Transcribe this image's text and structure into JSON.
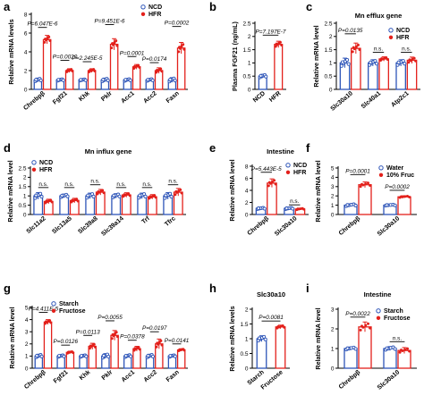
{
  "colors": {
    "control": "#2e55b8",
    "treatment": "#e3201b",
    "axis": "#000000"
  },
  "panels": [
    {
      "letter": "a",
      "title": "",
      "ylabel": "Relative mRNA levels",
      "ylim": [
        0,
        8
      ],
      "yticks": [
        0,
        2,
        4,
        6,
        8
      ],
      "legend": [
        "NCD",
        "HFR"
      ],
      "legend_position": "top-right",
      "categories": [
        "Chrebpβ",
        "Fgf21",
        "Khk",
        "Pklr",
        "Acc1",
        "Acc2",
        "Fasn"
      ],
      "series": [
        {
          "name": "NCD",
          "values": [
            1.0,
            1.0,
            1.0,
            1.0,
            1.0,
            1.0,
            1.0
          ],
          "errors": [
            0.2,
            0.12,
            0.1,
            0.2,
            0.15,
            0.15,
            0.25
          ]
        },
        {
          "name": "HFR",
          "values": [
            5.3,
            2.0,
            2.0,
            4.8,
            2.4,
            2.0,
            4.4
          ],
          "errors": [
            0.45,
            0.2,
            0.2,
            0.6,
            0.25,
            0.3,
            0.6
          ]
        }
      ],
      "pvalues": [
        {
          "cat": 0,
          "text": "P=6.047E-6",
          "y": 6.6
        },
        {
          "cat": 1,
          "text": "P=0.0020",
          "y": 3.1
        },
        {
          "cat": 2,
          "text": "P=2.245E-5",
          "y": 2.95
        },
        {
          "cat": 3,
          "text": "P=9.451E-6",
          "y": 6.9
        },
        {
          "cat": 4,
          "text": "P=0.0001",
          "y": 3.5
        },
        {
          "cat": 5,
          "text": "P=0.0174",
          "y": 2.85
        },
        {
          "cat": 6,
          "text": "P=0.0002",
          "y": 6.7
        }
      ]
    },
    {
      "letter": "b",
      "title": "",
      "ylabel": "Plasma FGF21 (ng/mL)",
      "ylim": [
        0,
        2.5
      ],
      "yticks": [
        0,
        0.5,
        1.0,
        1.5,
        2.0,
        2.5
      ],
      "legend": [],
      "legend_position": "",
      "categories": [
        "NCD",
        "HFR"
      ],
      "series": [
        {
          "name": "NCD",
          "values": [
            0.5,
            null
          ],
          "errors": [
            0.07,
            null
          ]
        },
        {
          "name": "HFR",
          "values": [
            null,
            1.7
          ],
          "errors": [
            null,
            0.12
          ]
        }
      ],
      "pvalues": [
        {
          "cat": [
            0,
            1
          ],
          "text": "P=7.197E-7",
          "y": 2.05
        }
      ]
    },
    {
      "letter": "c",
      "title": "Mn efflux gene",
      "ylabel": "Relative mRNA level",
      "ylim": [
        0,
        2.5
      ],
      "yticks": [
        0,
        0.5,
        1.0,
        1.5,
        2.0,
        2.5
      ],
      "legend": [
        "NCD",
        "HFR"
      ],
      "legend_position": "top-right",
      "categories": [
        "Slc30a10",
        "Slc40a1",
        "Atp2c1"
      ],
      "series": [
        {
          "name": "NCD",
          "values": [
            1.0,
            1.0,
            1.0
          ],
          "errors": [
            0.18,
            0.12,
            0.12
          ]
        },
        {
          "name": "HFR",
          "values": [
            1.55,
            1.15,
            1.1
          ],
          "errors": [
            0.2,
            0.08,
            0.12
          ]
        }
      ],
      "pvalues": [
        {
          "cat": 0,
          "text": "P=0.0135",
          "y": 2.1
        },
        {
          "cat": 1,
          "text": "n.s.",
          "y": 1.4
        },
        {
          "cat": 2,
          "text": "n.s.",
          "y": 1.4
        }
      ]
    },
    {
      "letter": "d",
      "title": "Mn influx gene",
      "ylabel": "Relative mRNA level",
      "ylim": [
        0,
        2.5
      ],
      "yticks": [
        0,
        0.5,
        1.0,
        1.5,
        2.0,
        2.5
      ],
      "legend": [
        "NCD",
        "HFR"
      ],
      "legend_position": "top-left",
      "categories": [
        "Slc11a2",
        "Slc13a5",
        "Slc39a8",
        "Slc39a14",
        "Trf",
        "Tfrc"
      ],
      "series": [
        {
          "name": "NCD",
          "values": [
            1.0,
            1.0,
            1.0,
            1.0,
            1.0,
            1.0
          ],
          "errors": [
            0.18,
            0.1,
            0.15,
            0.12,
            0.15,
            0.18
          ]
        },
        {
          "name": "HFR",
          "values": [
            0.7,
            0.75,
            1.2,
            1.05,
            0.95,
            1.2
          ],
          "errors": [
            0.12,
            0.12,
            0.15,
            0.12,
            0.12,
            0.2
          ]
        }
      ],
      "pvalues": [
        {
          "cat": 0,
          "text": "n.s.",
          "y": 1.45
        },
        {
          "cat": 1,
          "text": "n.s.",
          "y": 1.45
        },
        {
          "cat": 2,
          "text": "n.s.",
          "y": 1.6
        },
        {
          "cat": 3,
          "text": "n.s.",
          "y": 1.45
        },
        {
          "cat": 4,
          "text": "n.s.",
          "y": 1.45
        },
        {
          "cat": 5,
          "text": "n.s.",
          "y": 1.6
        }
      ]
    },
    {
      "letter": "e",
      "title": "Intestine",
      "ylabel": "Relative mRNA level",
      "ylim": [
        0,
        8
      ],
      "yticks": [
        0,
        2,
        4,
        6,
        8
      ],
      "legend": [
        "NCD",
        "HFR"
      ],
      "legend_position": "top-right",
      "categories": [
        "Chrebpβ",
        "Slc30a10"
      ],
      "series": [
        {
          "name": "NCD",
          "values": [
            1.0,
            1.0
          ],
          "errors": [
            0.15,
            0.15
          ]
        },
        {
          "name": "HFR",
          "values": [
            5.2,
            0.9
          ],
          "errors": [
            0.7,
            0.15
          ]
        }
      ],
      "pvalues": [
        {
          "cat": 0,
          "text": "P=5.443E-5",
          "y": 7.0
        },
        {
          "cat": 1,
          "text": "n.s.",
          "y": 1.6
        }
      ]
    },
    {
      "letter": "f",
      "title": "",
      "ylabel": "Relative mRNA level",
      "ylim": [
        0,
        5
      ],
      "yticks": [
        0,
        1,
        2,
        3,
        4,
        5
      ],
      "legend": [
        "Water",
        "10% Fruc"
      ],
      "legend_position": "top-right",
      "categories": [
        "Chrebpβ",
        "Slc30a10"
      ],
      "series": [
        {
          "name": "Water",
          "values": [
            1.0,
            1.0
          ],
          "errors": [
            0.15,
            0.08
          ]
        },
        {
          "name": "10% Fruc",
          "values": [
            3.2,
            1.9
          ],
          "errors": [
            0.3,
            0.12
          ]
        }
      ],
      "pvalues": [
        {
          "cat": 0,
          "text": "P=0.0001",
          "y": 4.3
        },
        {
          "cat": 1,
          "text": "P=0.0002",
          "y": 2.6
        }
      ]
    },
    {
      "letter": "g",
      "title": "",
      "ylabel": "Relative mRNA level",
      "ylim": [
        0,
        5
      ],
      "yticks": [
        0,
        1,
        2,
        3,
        4,
        5
      ],
      "legend": [
        "Starch",
        "Fructose"
      ],
      "legend_position": "top-center",
      "categories": [
        "Chrebpβ",
        "Fgf21",
        "Khk",
        "Pklr",
        "Acc1",
        "Acc2",
        "Fasn"
      ],
      "series": [
        {
          "name": "Starch",
          "values": [
            1.0,
            1.0,
            1.0,
            1.0,
            1.0,
            1.0,
            1.0
          ],
          "errors": [
            0.15,
            0.1,
            0.1,
            0.2,
            0.12,
            0.15,
            0.1
          ]
        },
        {
          "name": "Fructose",
          "values": [
            3.8,
            1.3,
            1.8,
            2.7,
            1.6,
            2.0,
            1.5
          ],
          "errors": [
            0.2,
            0.1,
            0.25,
            0.4,
            0.2,
            0.4,
            0.1
          ]
        }
      ],
      "pvalues": [
        {
          "cat": 0,
          "text": "P=4.411E-5",
          "y": 4.6
        },
        {
          "cat": 1,
          "text": "P=0.0126",
          "y": 1.9
        },
        {
          "cat": 2,
          "text": "P=0.0113",
          "y": 2.7
        },
        {
          "cat": 3,
          "text": "P=0.0055",
          "y": 3.9
        },
        {
          "cat": 4,
          "text": "P=0.0378",
          "y": 2.3
        },
        {
          "cat": 5,
          "text": "P=0.0197",
          "y": 3.0
        },
        {
          "cat": 6,
          "text": "P=0.0141",
          "y": 2.0
        }
      ]
    },
    {
      "letter": "h",
      "title": "Slc30a10",
      "ylabel": "Relative mRNA levels",
      "ylim": [
        0,
        2.0
      ],
      "yticks": [
        0,
        0.5,
        1.0,
        1.5,
        2.0
      ],
      "legend": [],
      "legend_position": "",
      "categories": [
        "Starch",
        "Fructose"
      ],
      "series": [
        {
          "name": "Starch",
          "values": [
            1.0,
            null
          ],
          "errors": [
            0.1,
            null
          ]
        },
        {
          "name": "Fructose",
          "values": [
            null,
            1.4
          ],
          "errors": [
            null,
            0.06
          ]
        }
      ],
      "pvalues": [
        {
          "cat": [
            0,
            1
          ],
          "text": "P=0.0081",
          "y": 1.6
        }
      ]
    },
    {
      "letter": "i",
      "title": "Intestine",
      "ylabel": "Relative mRNA level",
      "ylim": [
        0,
        3
      ],
      "yticks": [
        0,
        1,
        2,
        3
      ],
      "legend": [
        "Starch",
        "Fructose"
      ],
      "legend_position": "top-right",
      "categories": [
        "Chrebpβ",
        "Slc30a10"
      ],
      "series": [
        {
          "name": "Starch",
          "values": [
            1.0,
            1.0
          ],
          "errors": [
            0.08,
            0.1
          ]
        },
        {
          "name": "Fructose",
          "values": [
            2.1,
            0.9
          ],
          "errors": [
            0.25,
            0.15
          ]
        }
      ],
      "pvalues": [
        {
          "cat": 0,
          "text": "P=0.0022",
          "y": 2.6
        },
        {
          "cat": 1,
          "text": "n.s.",
          "y": 1.35
        }
      ]
    }
  ],
  "chart_data": [
    {
      "type": "bar",
      "panel": "a",
      "categories": [
        "Chrebpβ",
        "Fgf21",
        "Khk",
        "Pklr",
        "Acc1",
        "Acc2",
        "Fasn"
      ],
      "series": [
        {
          "name": "NCD",
          "values": [
            1.0,
            1.0,
            1.0,
            1.0,
            1.0,
            1.0,
            1.0
          ]
        },
        {
          "name": "HFR",
          "values": [
            5.3,
            2.0,
            2.0,
            4.8,
            2.4,
            2.0,
            4.4
          ]
        }
      ],
      "ylabel": "Relative mRNA levels",
      "ylim": [
        0,
        8
      ]
    },
    {
      "type": "bar",
      "panel": "b",
      "categories": [
        "NCD",
        "HFR"
      ],
      "values": [
        0.5,
        1.7
      ],
      "ylabel": "Plasma FGF21 (ng/mL)",
      "ylim": [
        0,
        2.5
      ]
    },
    {
      "type": "bar",
      "panel": "c",
      "title": "Mn efflux gene",
      "categories": [
        "Slc30a10",
        "Slc40a1",
        "Atp2c1"
      ],
      "series": [
        {
          "name": "NCD",
          "values": [
            1.0,
            1.0,
            1.0
          ]
        },
        {
          "name": "HFR",
          "values": [
            1.55,
            1.15,
            1.1
          ]
        }
      ],
      "ylabel": "Relative mRNA level",
      "ylim": [
        0,
        2.5
      ]
    },
    {
      "type": "bar",
      "panel": "d",
      "title": "Mn influx gene",
      "categories": [
        "Slc11a2",
        "Slc13a5",
        "Slc39a8",
        "Slc39a14",
        "Trf",
        "Tfrc"
      ],
      "series": [
        {
          "name": "NCD",
          "values": [
            1.0,
            1.0,
            1.0,
            1.0,
            1.0,
            1.0
          ]
        },
        {
          "name": "HFR",
          "values": [
            0.7,
            0.75,
            1.2,
            1.05,
            0.95,
            1.2
          ]
        }
      ],
      "ylabel": "Relative mRNA level",
      "ylim": [
        0,
        2.5
      ]
    },
    {
      "type": "bar",
      "panel": "e",
      "title": "Intestine",
      "categories": [
        "Chrebpβ",
        "Slc30a10"
      ],
      "series": [
        {
          "name": "NCD",
          "values": [
            1.0,
            1.0
          ]
        },
        {
          "name": "HFR",
          "values": [
            5.2,
            0.9
          ]
        }
      ],
      "ylabel": "Relative mRNA level",
      "ylim": [
        0,
        8
      ]
    },
    {
      "type": "bar",
      "panel": "f",
      "categories": [
        "Chrebpβ",
        "Slc30a10"
      ],
      "series": [
        {
          "name": "Water",
          "values": [
            1.0,
            1.0
          ]
        },
        {
          "name": "10% Fruc",
          "values": [
            3.2,
            1.9
          ]
        }
      ],
      "ylabel": "Relative mRNA level",
      "ylim": [
        0,
        5
      ]
    },
    {
      "type": "bar",
      "panel": "g",
      "categories": [
        "Chrebpβ",
        "Fgf21",
        "Khk",
        "Pklr",
        "Acc1",
        "Acc2",
        "Fasn"
      ],
      "series": [
        {
          "name": "Starch",
          "values": [
            1.0,
            1.0,
            1.0,
            1.0,
            1.0,
            1.0,
            1.0
          ]
        },
        {
          "name": "Fructose",
          "values": [
            3.8,
            1.3,
            1.8,
            2.7,
            1.6,
            2.0,
            1.5
          ]
        }
      ],
      "ylabel": "Relative mRNA level",
      "ylim": [
        0,
        5
      ]
    },
    {
      "type": "bar",
      "panel": "h",
      "title": "Slc30a10",
      "categories": [
        "Starch",
        "Fructose"
      ],
      "values": [
        1.0,
        1.4
      ],
      "ylabel": "Relative mRNA levels",
      "ylim": [
        0,
        2.0
      ]
    },
    {
      "type": "bar",
      "panel": "i",
      "title": "Intestine",
      "categories": [
        "Chrebpβ",
        "Slc30a10"
      ],
      "series": [
        {
          "name": "Starch",
          "values": [
            1.0,
            1.0
          ]
        },
        {
          "name": "Fructose",
          "values": [
            2.1,
            0.9
          ]
        }
      ],
      "ylabel": "Relative mRNA level",
      "ylim": [
        0,
        3
      ]
    }
  ]
}
